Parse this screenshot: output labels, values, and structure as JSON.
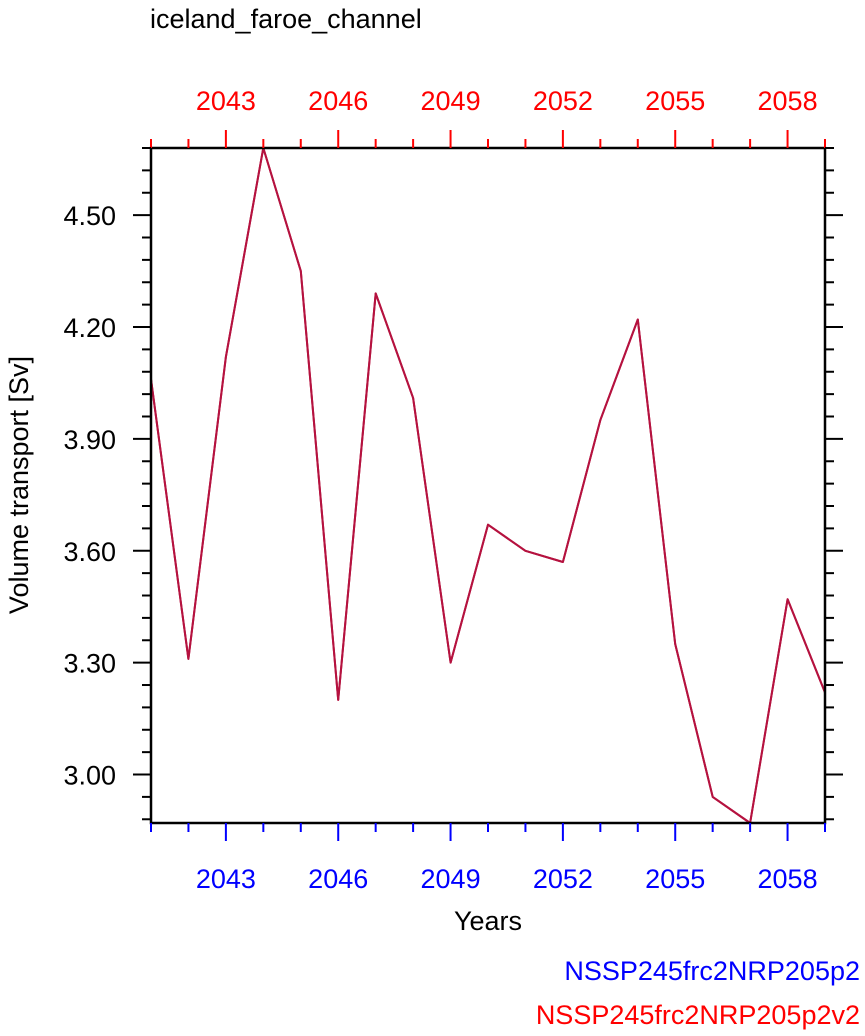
{
  "chart_data": {
    "type": "line",
    "title": "iceland_faroe_channel",
    "xlabel": "Years",
    "ylabel": "Volume transport [Sv]",
    "xlim": [
      2041,
      2059
    ],
    "ylim": [
      2.87,
      4.68
    ],
    "x_tick_labels": [
      "2043",
      "2046",
      "2049",
      "2052",
      "2055",
      "2058"
    ],
    "y_tick_labels": [
      "3.00",
      "3.30",
      "3.60",
      "3.90",
      "4.20",
      "4.50"
    ],
    "x_axis_colors": {
      "bottom": "#0000ff",
      "top": "#ff0000"
    },
    "grid": false,
    "legend_position": "bottom-right",
    "series": [
      {
        "name": "NSSP245frc2NRP205p2",
        "legend_color": "#0000ff",
        "color": "#b5123f",
        "x": [
          2041,
          2042,
          2043,
          2044,
          2045,
          2046,
          2047,
          2048,
          2049,
          2050,
          2051,
          2052,
          2053,
          2054,
          2055,
          2056,
          2057,
          2058,
          2059
        ],
        "values": [
          4.06,
          3.31,
          4.12,
          4.68,
          4.35,
          3.2,
          4.29,
          4.01,
          3.3,
          3.67,
          3.6,
          3.57,
          3.95,
          4.22,
          3.35,
          2.94,
          2.87,
          3.47,
          3.22
        ]
      },
      {
        "name": "NSSP245frc2NRP205p2v2",
        "legend_color": "#ff0000",
        "color": "#b5123f",
        "x": [
          2041,
          2042,
          2043,
          2044,
          2045,
          2046,
          2047,
          2048,
          2049,
          2050,
          2051,
          2052,
          2053,
          2054,
          2055,
          2056,
          2057,
          2058,
          2059
        ],
        "values": [
          4.06,
          3.31,
          4.12,
          4.68,
          4.35,
          3.2,
          4.29,
          4.01,
          3.3,
          3.67,
          3.6,
          3.57,
          3.95,
          4.22,
          3.35,
          2.94,
          2.87,
          3.47,
          3.22
        ]
      }
    ]
  }
}
